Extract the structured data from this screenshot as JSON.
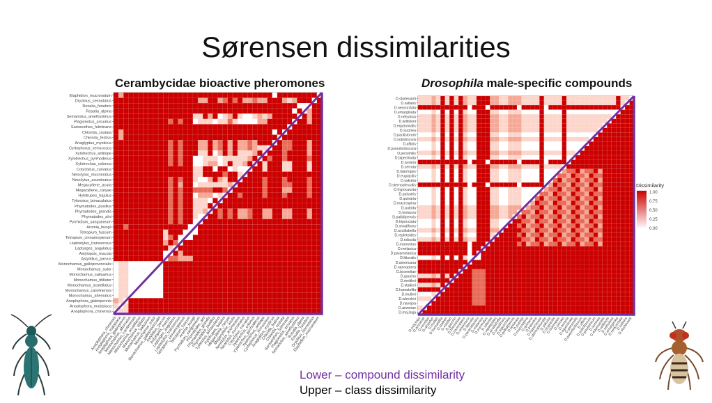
{
  "slide": {
    "title": "Sørensen dissimilarities",
    "footer_lower": "Lower – compound dissimilarity",
    "footer_upper": "Upper –  class dissimilarity",
    "colors": {
      "accent_purple": "#7030a0",
      "high": "#cc0000",
      "low": "#ffffff"
    }
  },
  "chart_data": [
    {
      "type": "heatmap",
      "title": "Cerambycidae bioactive pheromones",
      "value_levels": [
        0.0,
        0.25,
        0.5,
        0.75,
        1.0
      ],
      "note": "Lower – compound dissimilarity; Upper – class dissimilarity",
      "rows": [
        "Elaphidion_mucronatum",
        "Dryobius_sexnotatus",
        "Rosalia_funebris",
        "Rosalia_alpina",
        "Semanotus_amethystinus",
        "Plagionotus_arcuatus",
        "Sarosesthes_fulminans",
        "Chlorida_costata",
        "Chlorida_festiva",
        "Anaglyptus_mysticus",
        "Cyrtophorus_verrucosus",
        "Xylotrechus_antilope",
        "Xylotrechus_pyrrhoderus",
        "Xylotrechus_colonus",
        "Cotyclytus_curvatus",
        "Neoclytus_mucronatus",
        "Neoclytus_acuminatus",
        "Megacyllene_acuta",
        "Megacyllene_caryae",
        "Hylotrupes_bajulus",
        "Tylonotus_bimaculatus",
        "Phymatodes_pusillus",
        "Phymatodes_grandis",
        "Phymatodes_alni",
        "Pyrrhidium_sanguineum",
        "Aromia_bungii",
        "Tetropium_fuscum",
        "Tetropium_cinnamopterum",
        "Leptostylus_transversus",
        "Lepturges_angulatus",
        "Astylopsis_macula",
        "Astylidius_parvus",
        "Monochamus_galloprovincialis",
        "Monochamus_sutor",
        "Monochamus_saltuarius",
        "Monochamus_titillator",
        "Monochamus_scutellatus",
        "Monochamus_carolinensis",
        "Monochamus_alternatus",
        "Anoplophora_glabripennis",
        "Anoplophora_malasiaca",
        "Anoplophora_chinensis"
      ],
      "matrix_levels": [
        "4244444444 4444444444 4444444444 4404444444 40",
        "4444444444 4444444224 4234342232 2444212444 04",
        "4444444444 4444444444 4444444444 4444444000 44",
        "4444444444 4444444444 4444444444 4444440402 44",
        "4444444444 4444441142 4012410012 1244444042 44",
        "4444444444 4343440111 0113100002 2444440442 44",
        "4444444444 4444444444 4444444444 4444404444 44",
        "4244444444 4444444444 4444444444 4404044444 44",
        "4244444444 4444444444 4444444444 4440444444 44",
        "4444444444 4343444224 2342422324 4404334442 44",
        "4444444444 4343444224 2342422321 1044334442 44",
        "4444444444 4343444114 0242411124 0444344442 44",
        "4444444444 4343440011 1011111240 4344344443 44",
        "4444444444 4343440012 2014112404 1444114441 44",
        "4444444444 4444441144 0440100044 1444114441 44",
        "4444444444 4444441144 4434410444 4444444444 44",
        "4444444444 4343441002 4214404444 3444344443 44",
        "4444444444 4342440111 1112044444 3444334443 44",
        "4444444444 4343443333 4430444444 3444224443 44",
        "4444444444 4343440222 0104434444 3444344443 44",
        "4444444444 4343441110 4044444444 4444444444 44",
        "4444444444 4343441114 0444444444 4444444444 44",
        "4444444444 4343441120 4343422344 2244224442 44",
        "4444444444 4343441004 4343422344 2244224442 44",
        "4444444444 4343440044 4444444444 4444444444 44",
        "4434444444 4444400444 4444444444 4444444444 44",
        "4444444444 1444000444 4444444444 4444444444 44",
        "4444444444 1340004444 4444444444 4444444444 44",
        "4444444444 2430444444 4444444444 4444444444 44",
        "4444444444 4104444444 4444444444 4444444444 44",
        "4444444444 0042444444 4444444444 4444444444 44",
        "4444444444 0332224444 4444444444 4444444444 44",
        "0110000000 4444444444 4444444444 4444444444 44",
        "0110000000 4444444444 4444444444 4444444444 44",
        "0110000000 4444444444 4444444444 4444444444 44",
        "0110000000 4444444444 4444444444 4444444444 44",
        "0110000000 4444444444 4444444444 4444444444 44",
        "0110000000 4444444444 4444444444 4444444444 44",
        "0110000000 4444444444 4444444444 4444444444 44",
        "2104444444 4444444444 4444444444 4444444444 44",
        "1014444444 4444444444 4444444444 4444444444 44",
        "0114444444 4444444444 4444444444 4444444444 44"
      ]
    },
    {
      "type": "heatmap",
      "title_italic": "Drosophila",
      "title_rest": " male-specific compounds",
      "legend": {
        "title": "Dissimilarity",
        "ticks": [
          "1.00",
          "0.75",
          "0.50",
          "0.25",
          "0.00"
        ],
        "placement": "right"
      },
      "value_levels": [
        0.0,
        0.25,
        0.5,
        0.75,
        1.0
      ],
      "rows": [
        "D.sturtevanti",
        "D.saltans",
        "D.neocordata",
        "D.emarginata",
        "D.nebulosa",
        "D.willistoni",
        "D.equinoxialis",
        "D.sucinea",
        "D.paulistorum",
        "D.subobscura",
        "D.affinis",
        "D.pseudoobscura",
        "D.persimilis",
        "D.bipectinata",
        "D.auraria",
        "D.serrata",
        "D.biarmipes",
        "D.eugracilis",
        "D.yakuba",
        "D.sternopleuralis",
        "D.hypocausta",
        "D.palustris",
        "D.quinaria",
        "D.macrospina",
        "D.putrida",
        "D.testacea",
        "D.pallidipennis",
        "D.tripunctata",
        "D.ornatifrons",
        "D.acutilabella",
        "D.repletoides",
        "D.robusta",
        "D.euronotus",
        "D.melanica",
        "D.paramelanica",
        "D.littoralis",
        "D.americana",
        "D.nannoptera",
        "D.bromeliae",
        "D.gaucho",
        "D.mettleri",
        "D.stalkeri",
        "D.hamatofila",
        "D.mulleri",
        "D.wheeleri",
        "D.navojoa",
        "D.arizonae",
        "D.moj.baja"
      ],
      "matrix_levels": [
        "1112141414 2114442211 2221111411 1141111111 11114110",
        "1112141414 2114442211 2221111411 1141111111 11114104",
        "4444444444 4044404444 4404444404 4444444444 44444044",
        "0001040404 1004441100 1110000400 0040000000 00000444",
        "1112141414 2114442211 2221111411 1141111111 11104444",
        "1112141414 2114442211 2221111411 1141111111 11044444",
        "1112141414 2114442211 2221111411 1141111111 10444444",
        "1112141414 2114442211 2221111411 1141111111 04444444",
        "0001040404 1004441100 1110000400 0040000000 44444444",
        "1112141414 2114442211 2221111411 1141111104 44444444",
        "0001040404 1004441100 1110000400 0040000044 44444444",
        "0001040404 1004441100 1110000400 0040000444 44444444",
        "1112141414 2114442211 2221111411 1141104444 44444444",
        "0001040404 1004441100 1110000400 0040044444 44444444",
        "4444444444 4044404444 4404444404 4440444444 44444444",
        "1112141414 2114442211 2221111411 1104444444 44444444",
        "0001040404 1004441100 1110000400 0023342334 24444444",
        "0001040404 1004441100 1110000400 0332433243 34444444",
        "0001040404 1004441100 1110000400 3423342334 24444444",
        "4444444444 4044404444 4404444402 4332433243 34444444",
        "0001040404 1004441100 1110000023 3423342334 24444444",
        "0001040404 1004441100 1110000332 4332433243 34444444",
        "0001040404 1004441100 1110003423 3423342334 24444444",
        "0001040404 1004441100 1110024332 4332433243 34444444",
        "1112141414 2114442211 2220233423 3423342334 24444444",
        "1112141414 2114442211 2203324332 4332433243 34444444",
        "1112141414 2114442211 2034233423 3423342334 24444444",
        "0001040404 1004441100 0443324332 4332433243 34444444",
        "0001040404 1004441100 4434233423 3423342334 24444444",
        "1112141414 2114442204 4443324332 4332433243 34444444",
        "0001040404 1004441044 4434233423 3423342334 24444444",
        "1112141414 2114440444 4443324332 4332433243 34444444",
        "4444444444 4044404444 4434233423 3423342334 24444444",
        "4444444444 4044044444 4444444444 4444444444 44444444",
        "4444444444 4040444444 4444444444 4444444444 44444444",
        "0001040404 1000444444 4444444444 4444444444 44444444",
        "4444444444 4044444444 4444444444 4444444444 44444444",
        "4444444444 0444444444 4444444444 4444444444 44444444",
        "4444444440 4433344444 4444444444 4444444444 44444444",
        "1112141404 4433344444 4444444444 4444444444 44444444",
        "4444444044 4433344444 4444444444 4444444444 44444444",
        "1112140444 4433344444 4444444444 4444444444 44444444",
        "4444404444 4433344444 4444444444 4444444444 44444444",
        "0001044444 4433344444 4444444444 4444444444 44444444",
        "1110444444 4433344444 4444444444 4444444444 44444444",
        "0004444444 4433344444 4444444444 4444444444 44444444",
        "1044444444 4444444444 4444444444 4444444444 44444444",
        "0444444444 4444444444 4444444444 4444444444 44444444"
      ]
    }
  ]
}
